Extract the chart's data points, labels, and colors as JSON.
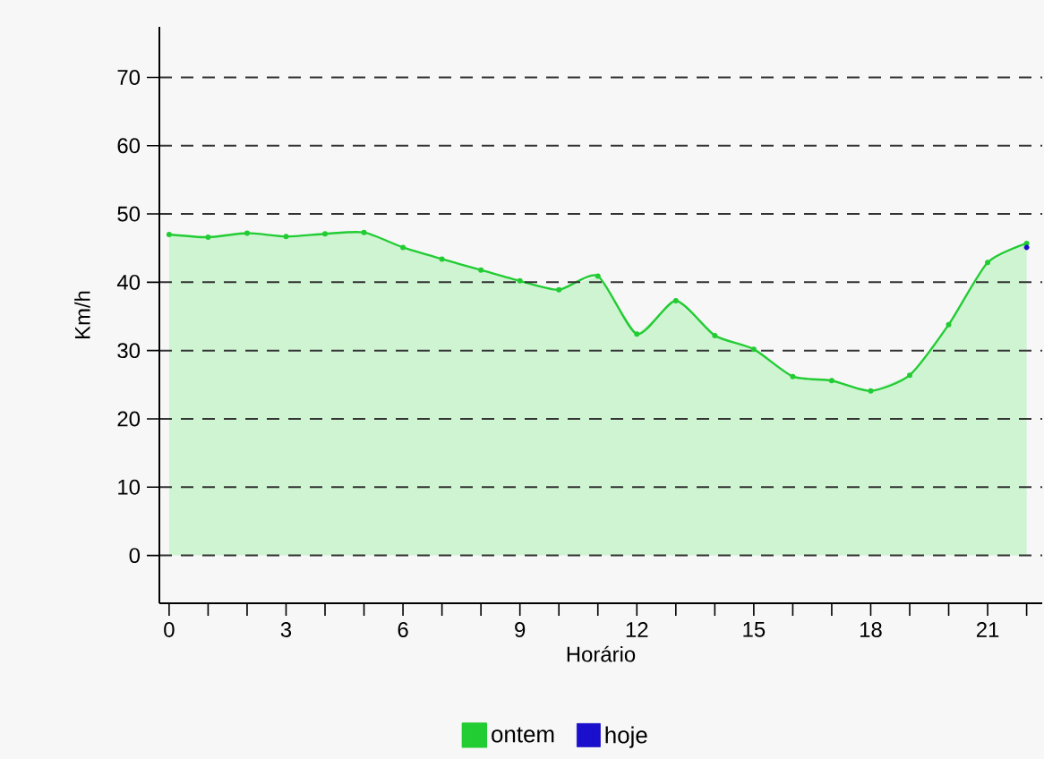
{
  "chart_data": {
    "type": "area",
    "xlabel": "Horário",
    "ylabel": "Km/h",
    "x": [
      0,
      1,
      2,
      3,
      4,
      5,
      6,
      7,
      8,
      9,
      10,
      11,
      12,
      13,
      14,
      15,
      16,
      17,
      18,
      19,
      20,
      21,
      22
    ],
    "series": [
      {
        "name": "ontem",
        "color": "#22cc33",
        "values": [
          47.0,
          46.6,
          47.2,
          46.7,
          47.1,
          47.3,
          45.1,
          43.4,
          41.8,
          40.2,
          38.9,
          40.9,
          32.4,
          37.3,
          32.2,
          30.2,
          26.2,
          25.6,
          24.1,
          26.4,
          33.8,
          42.9,
          45.7
        ]
      },
      {
        "name": "hoje",
        "type": "scatter",
        "color": "#1a0fcc",
        "values": [
          null,
          null,
          null,
          null,
          null,
          null,
          null,
          null,
          null,
          null,
          null,
          null,
          null,
          null,
          null,
          null,
          null,
          null,
          null,
          null,
          null,
          null,
          45.1
        ]
      }
    ],
    "xlim": [
      -0.25,
      22.4
    ],
    "ylim": [
      -7,
      77.4
    ],
    "xticks": [
      0,
      {
        "value": 1,
        "label": null
      },
      {
        "value": 2,
        "label": null
      },
      3,
      {
        "value": 4,
        "label": null
      },
      {
        "value": 5,
        "label": null
      },
      6,
      {
        "value": 7,
        "label": null
      },
      {
        "value": 8,
        "label": null
      },
      9,
      {
        "value": 10,
        "label": null
      },
      {
        "value": 11,
        "label": null
      },
      12,
      {
        "value": 13,
        "label": null
      },
      {
        "value": 14,
        "label": null
      },
      15,
      {
        "value": 16,
        "label": null
      },
      {
        "value": 17,
        "label": null
      },
      18,
      {
        "value": 19,
        "label": null
      },
      {
        "value": 20,
        "label": null
      },
      21,
      {
        "value": 22,
        "label": null
      }
    ],
    "yticks": [
      0,
      10,
      20,
      30,
      40,
      50,
      60,
      70
    ],
    "grid": "y",
    "legend": "bottom",
    "marker": "circle",
    "line_style": "solid"
  }
}
